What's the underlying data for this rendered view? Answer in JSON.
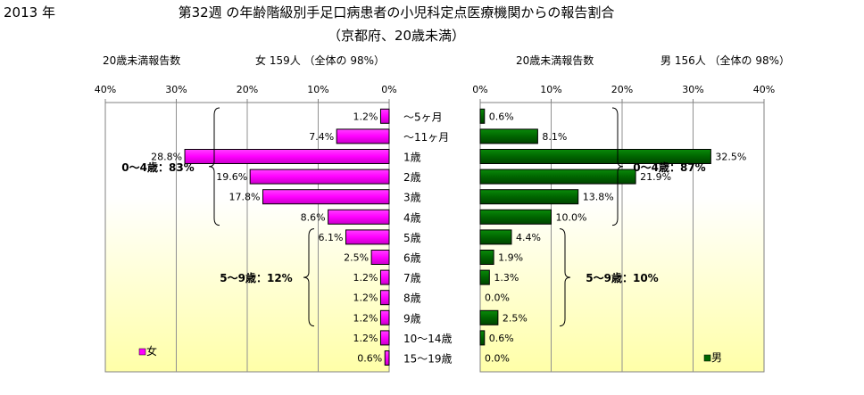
{
  "header": {
    "year": "2013 年",
    "title": "第32週 の年齢階級別手足口病患者の小児科定点医療機関からの報告割合",
    "subtitle": "（京都府、20歳未満）",
    "left_caption": "20歳未満報告数",
    "left_total": "女 159人 （全体の 98%）",
    "right_caption": "20歳未満報告数",
    "right_total": "男 156人 （全体の 98%）"
  },
  "chart_data": {
    "type": "bar",
    "orientation": "horizontal",
    "layout": "population-pyramid",
    "xlim": [
      0,
      40
    ],
    "tick_labels": [
      "0%",
      "10%",
      "20%",
      "30%",
      "40%"
    ],
    "grid": true,
    "categories": [
      "～5ヶ月",
      "～11ヶ月",
      "1歳",
      "2歳",
      "3歳",
      "4歳",
      "5歳",
      "6歳",
      "7歳",
      "8歳",
      "9歳",
      "10～14歳",
      "15～19歳"
    ],
    "series": [
      {
        "name": "女",
        "side": "left",
        "color": "#ff00ff",
        "values": [
          1.2,
          7.4,
          28.8,
          19.6,
          17.8,
          8.6,
          6.1,
          2.5,
          1.2,
          1.2,
          1.2,
          1.2,
          0.6
        ],
        "labels": [
          "1.2%",
          "7.4%",
          "28.8%",
          "19.6%",
          "17.8%",
          "8.6%",
          "6.1%",
          "2.5%",
          "1.2%",
          "1.2%",
          "1.2%",
          "1.2%",
          "0.6%"
        ],
        "legend": "女",
        "legend_placement": "bottom-left"
      },
      {
        "name": "男",
        "side": "right",
        "color": "#006600",
        "values": [
          0.6,
          8.1,
          32.5,
          21.9,
          13.8,
          10.0,
          4.4,
          1.9,
          1.3,
          0.0,
          2.5,
          0.6,
          0.0
        ],
        "labels": [
          "0.6%",
          "8.1%",
          "32.5%",
          "21.9%",
          "13.8%",
          "10.0%",
          "4.4%",
          "1.9%",
          "1.3%",
          "0.0%",
          "2.5%",
          "0.6%",
          "0.0%"
        ],
        "legend": "男",
        "legend_placement": "bottom-right"
      }
    ],
    "annotations": [
      {
        "side": "left",
        "from": 0,
        "to": 5,
        "text": "0～4歳：83%"
      },
      {
        "side": "left",
        "from": 6,
        "to": 10,
        "text": "5～9歳：12%"
      },
      {
        "side": "right",
        "from": 0,
        "to": 5,
        "text": "0～4歳：87%"
      },
      {
        "side": "right",
        "from": 6,
        "to": 10,
        "text": "5～9歳：10%"
      }
    ]
  }
}
